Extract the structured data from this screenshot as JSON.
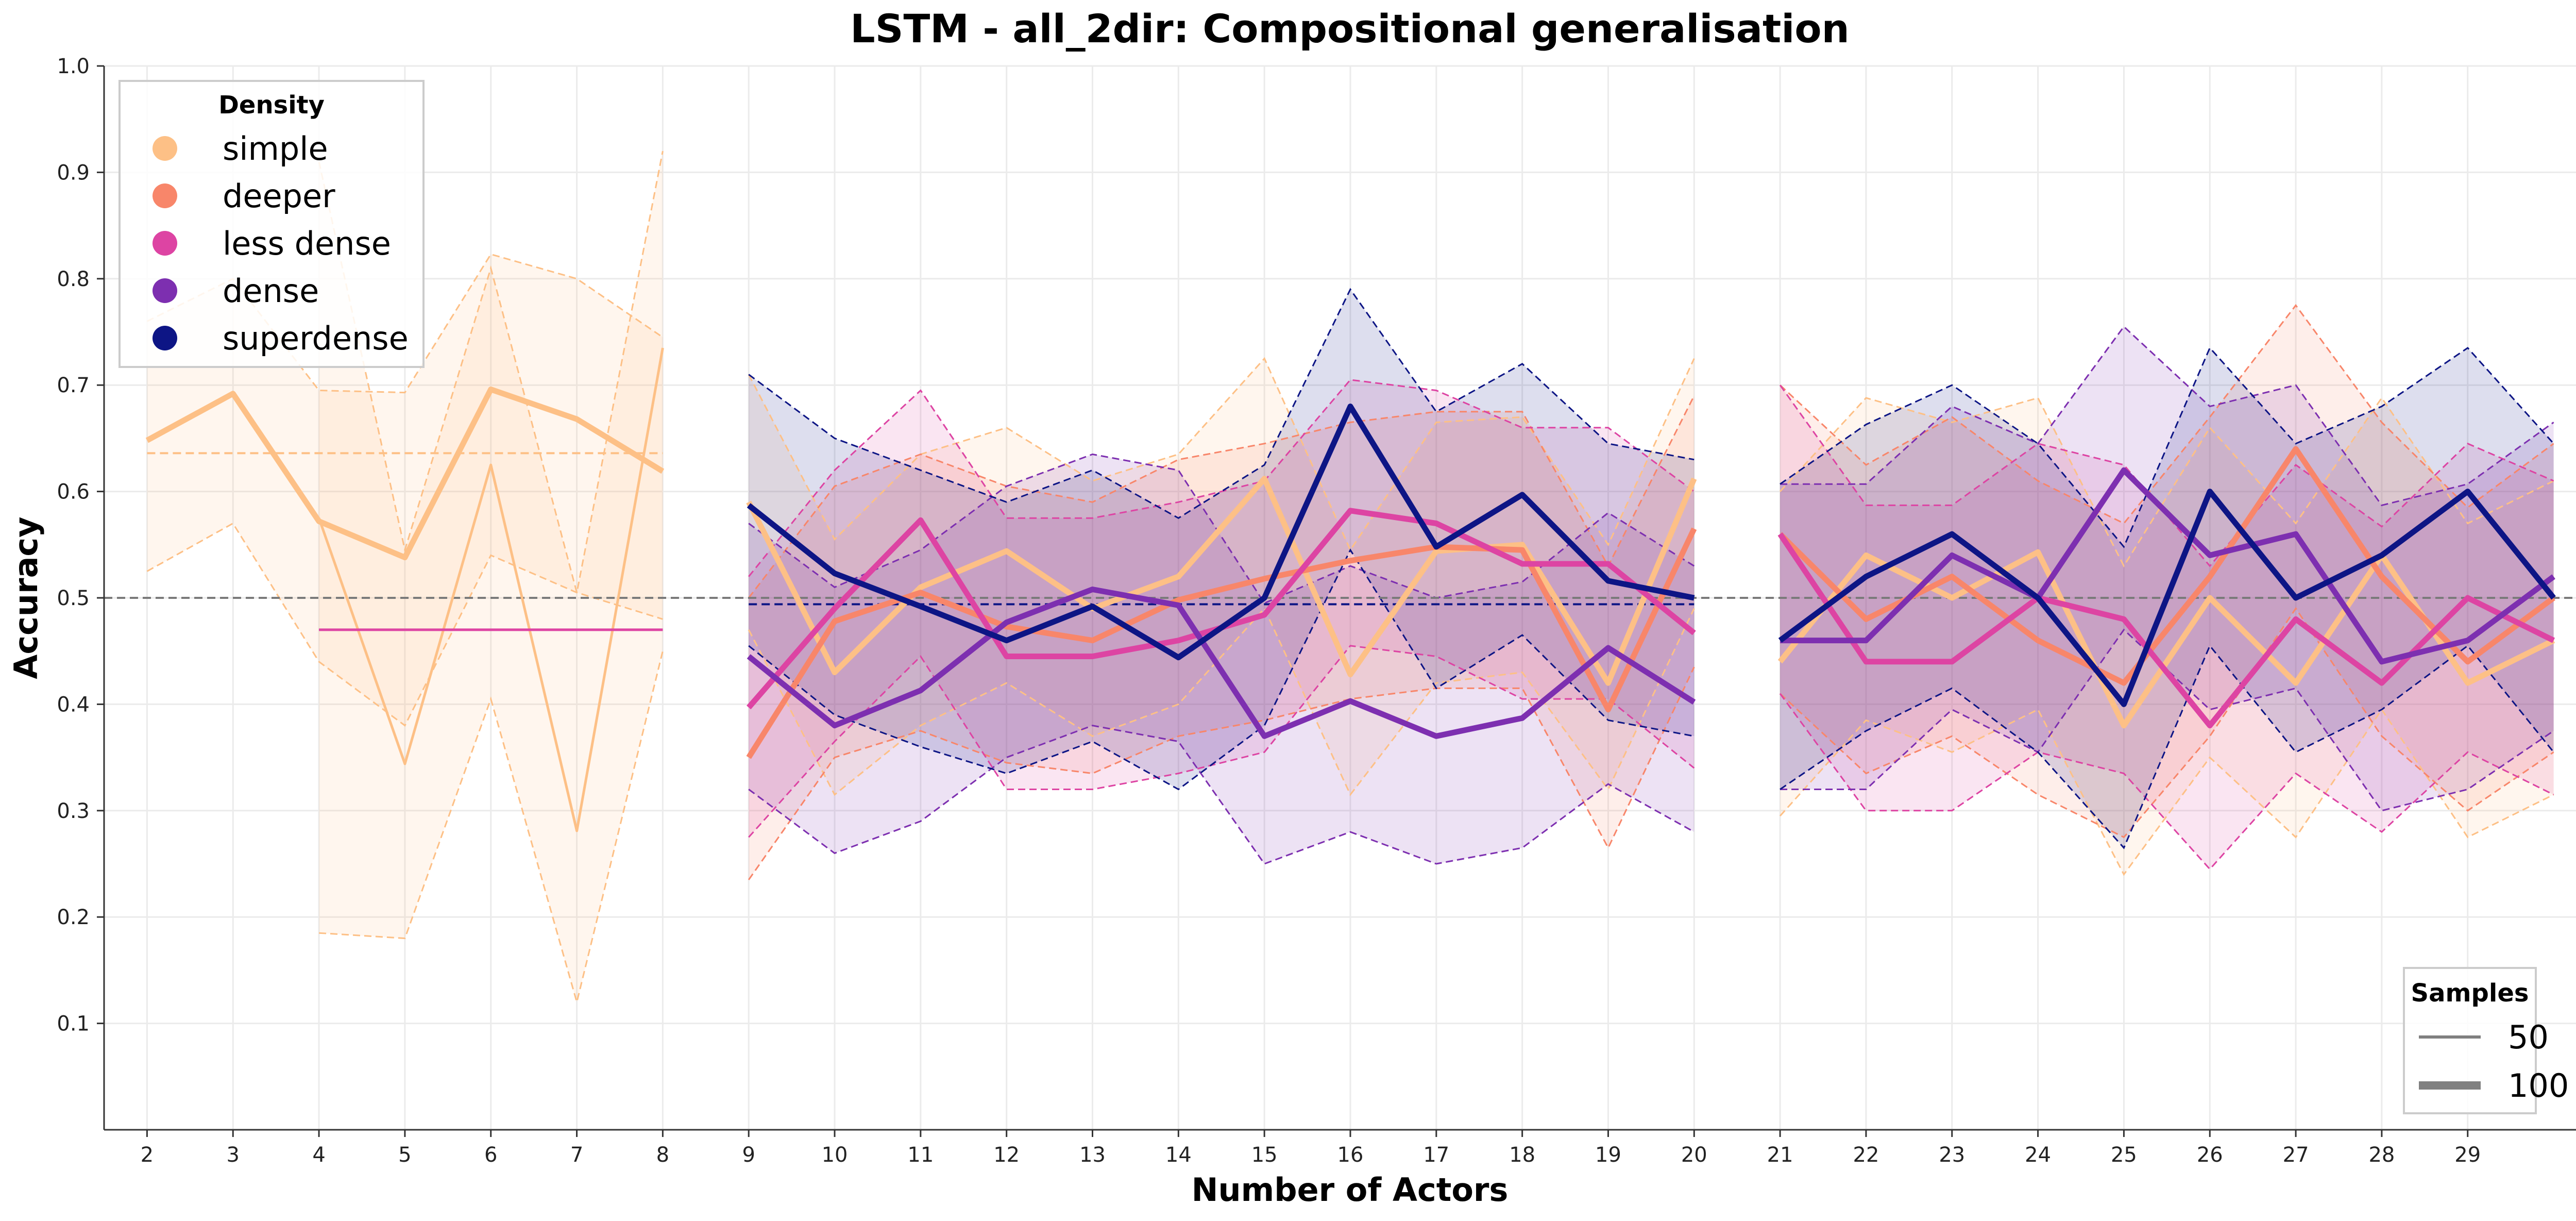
{
  "chart_data": {
    "type": "line",
    "title": "LSTM - all_2dir: Compositional generalisation",
    "xlabel": "Number of Actors",
    "ylabel": "Accuracy",
    "xlim": [
      1.5,
      30.5
    ],
    "ylim": [
      0.0,
      1.0
    ],
    "x_ticks": [
      2,
      3,
      4,
      5,
      6,
      7,
      8,
      9,
      10,
      11,
      12,
      13,
      14,
      15,
      16,
      17,
      18,
      19,
      20,
      21,
      22,
      23,
      24,
      25,
      26,
      27,
      28,
      29
    ],
    "y_ticks": [
      0.1,
      0.2,
      0.3,
      0.4,
      0.5,
      0.6,
      0.7,
      0.8,
      0.9,
      1.0
    ],
    "y_tick_labels": [
      "0.1",
      "0.2",
      "0.3",
      "0.4",
      "0.5",
      "0.6",
      "0.7",
      "0.8",
      "0.9",
      "1.0"
    ],
    "grid": true,
    "reference_line": 0.5,
    "density_legend": {
      "title": "Density",
      "placement": "top-left",
      "items": [
        {
          "label": "simple",
          "color": "#fdc086"
        },
        {
          "label": "deeper",
          "color": "#f8866a"
        },
        {
          "label": "less dense",
          "color": "#dd44a3"
        },
        {
          "label": "dense",
          "color": "#7d2fb0"
        },
        {
          "label": "superdense",
          "color": "#0d1585"
        }
      ]
    },
    "samples_legend": {
      "title": "Samples",
      "placement": "bottom-right",
      "items": [
        {
          "label": "50",
          "width": "thin"
        },
        {
          "label": "100",
          "width": "thick"
        }
      ]
    },
    "series": [
      {
        "name": "simple",
        "samples": "100",
        "color": "#fdc086",
        "groups": [
          {
            "x": [
              2,
              3,
              4,
              5,
              6,
              7,
              8
            ],
            "mean": [
              0.648,
              0.692,
              0.572,
              0.538,
              0.696,
              0.668,
              0.619
            ],
            "lower": [
              0.525,
              0.57,
              0.44,
              0.38,
              0.54,
              0.505,
              0.48
            ],
            "upper": [
              0.76,
              0.8,
              0.695,
              0.693,
              0.823,
              0.8,
              0.745
            ]
          },
          {
            "x": [
              9,
              10,
              11,
              12,
              13,
              14,
              15,
              16,
              17,
              18,
              19,
              20
            ],
            "mean": [
              0.59,
              0.43,
              0.51,
              0.544,
              0.49,
              0.52,
              0.612,
              0.428,
              0.544,
              0.55,
              0.42,
              0.612
            ],
            "lower": [
              0.47,
              0.315,
              0.38,
              0.42,
              0.37,
              0.4,
              0.49,
              0.315,
              0.42,
              0.43,
              0.32,
              0.49
            ],
            "upper": [
              0.71,
              0.555,
              0.635,
              0.66,
              0.61,
              0.635,
              0.725,
              0.545,
              0.665,
              0.67,
              0.55,
              0.725
            ]
          },
          {
            "x": [
              21,
              22,
              23,
              24,
              25,
              26,
              27,
              28,
              29,
              30
            ],
            "mean": [
              0.44,
              0.54,
              0.5,
              0.543,
              0.38,
              0.5,
              0.42,
              0.54,
              0.42,
              0.46
            ],
            "lower": [
              0.295,
              0.385,
              0.355,
              0.395,
              0.24,
              0.35,
              0.275,
              0.395,
              0.275,
              0.315
            ],
            "upper": [
              0.6,
              0.688,
              0.665,
              0.688,
              0.53,
              0.66,
              0.57,
              0.688,
              0.57,
              0.61
            ]
          }
        ]
      },
      {
        "name": "simple",
        "samples": "50",
        "color": "#fdc086",
        "groups": [
          {
            "x": [
              4,
              5,
              6,
              7,
              8
            ],
            "mean": [
              0.575,
              0.344,
              0.625,
              0.281,
              0.735
            ],
            "lower": [
              0.185,
              0.18,
              0.405,
              0.12,
              0.45
            ],
            "upper": [
              0.91,
              0.545,
              0.81,
              0.505,
              0.92
            ]
          }
        ]
      },
      {
        "name": "deeper",
        "samples": "100",
        "color": "#f8866a",
        "groups": [
          {
            "x": [
              9,
              10,
              11,
              12,
              13,
              14,
              15,
              16,
              17,
              18,
              19,
              20
            ],
            "mean": [
              0.35,
              0.478,
              0.505,
              0.473,
              0.46,
              0.498,
              0.518,
              0.535,
              0.548,
              0.545,
              0.395,
              0.565
            ],
            "lower": [
              0.235,
              0.35,
              0.375,
              0.345,
              0.335,
              0.37,
              0.385,
              0.405,
              0.415,
              0.415,
              0.265,
              0.435
            ],
            "upper": [
              0.5,
              0.605,
              0.635,
              0.605,
              0.59,
              0.63,
              0.645,
              0.665,
              0.675,
              0.675,
              0.53,
              0.69
            ]
          },
          {
            "x": [
              21,
              22,
              23,
              24,
              25,
              26,
              27,
              28,
              29,
              30
            ],
            "mean": [
              0.56,
              0.48,
              0.52,
              0.46,
              0.42,
              0.52,
              0.64,
              0.52,
              0.44,
              0.5
            ],
            "lower": [
              0.41,
              0.335,
              0.37,
              0.315,
              0.275,
              0.37,
              0.49,
              0.37,
              0.3,
              0.355
            ],
            "upper": [
              0.7,
              0.625,
              0.67,
              0.61,
              0.57,
              0.67,
              0.775,
              0.665,
              0.585,
              0.645
            ]
          }
        ]
      },
      {
        "name": "less dense",
        "samples": "50",
        "color": "#dd44a3",
        "groups": [
          {
            "x": [
              4,
              5,
              6,
              7,
              8
            ],
            "mean": [
              0.47,
              0.47,
              0.47,
              0.47,
              0.47
            ],
            "lower": [
              0.47,
              0.47,
              0.47,
              0.47,
              0.47
            ],
            "upper": [
              0.47,
              0.47,
              0.47,
              0.47,
              0.47
            ]
          }
        ]
      },
      {
        "name": "less dense",
        "samples": "100",
        "color": "#dd44a3",
        "groups": [
          {
            "x": [
              9,
              10,
              11,
              12,
              13,
              14,
              15,
              16,
              17,
              18,
              19,
              20
            ],
            "mean": [
              0.397,
              0.49,
              0.573,
              0.445,
              0.445,
              0.46,
              0.484,
              0.582,
              0.57,
              0.532,
              0.532,
              0.467
            ],
            "lower": [
              0.275,
              0.365,
              0.445,
              0.32,
              0.32,
              0.335,
              0.355,
              0.455,
              0.445,
              0.405,
              0.405,
              0.34
            ],
            "upper": [
              0.52,
              0.62,
              0.695,
              0.575,
              0.575,
              0.59,
              0.61,
              0.705,
              0.695,
              0.66,
              0.66,
              0.6
            ]
          },
          {
            "x": [
              21,
              22,
              23,
              24,
              25,
              26,
              27,
              28,
              29,
              30
            ],
            "mean": [
              0.56,
              0.44,
              0.44,
              0.5,
              0.48,
              0.38,
              0.48,
              0.42,
              0.5,
              0.46
            ],
            "lower": [
              0.41,
              0.3,
              0.3,
              0.355,
              0.335,
              0.245,
              0.335,
              0.28,
              0.355,
              0.315
            ],
            "upper": [
              0.7,
              0.587,
              0.587,
              0.645,
              0.625,
              0.53,
              0.625,
              0.567,
              0.645,
              0.61
            ]
          }
        ]
      },
      {
        "name": "dense",
        "samples": "100",
        "color": "#7d2fb0",
        "groups": [
          {
            "x": [
              9,
              10,
              11,
              12,
              13,
              14,
              15,
              16,
              17,
              18,
              19,
              20
            ],
            "mean": [
              0.445,
              0.38,
              0.413,
              0.477,
              0.508,
              0.493,
              0.37,
              0.403,
              0.37,
              0.387,
              0.453,
              0.402
            ],
            "lower": [
              0.32,
              0.26,
              0.29,
              0.35,
              0.38,
              0.365,
              0.25,
              0.28,
              0.25,
              0.265,
              0.325,
              0.28
            ],
            "upper": [
              0.57,
              0.51,
              0.545,
              0.605,
              0.635,
              0.62,
              0.495,
              0.53,
              0.5,
              0.515,
              0.58,
              0.53
            ]
          },
          {
            "x": [
              21,
              22,
              23,
              24,
              25,
              26,
              27,
              28,
              29,
              30
            ],
            "mean": [
              0.46,
              0.46,
              0.54,
              0.5,
              0.62,
              0.54,
              0.56,
              0.44,
              0.46,
              0.52
            ],
            "lower": [
              0.32,
              0.32,
              0.395,
              0.355,
              0.47,
              0.395,
              0.415,
              0.3,
              0.32,
              0.375
            ],
            "upper": [
              0.607,
              0.607,
              0.68,
              0.645,
              0.755,
              0.68,
              0.7,
              0.587,
              0.607,
              0.665
            ]
          }
        ]
      },
      {
        "name": "superdense",
        "samples": "100",
        "color": "#0d1585",
        "groups": [
          {
            "x": [
              9,
              10,
              11,
              12,
              13,
              14,
              15,
              16,
              17,
              18,
              19,
              20
            ],
            "mean": [
              0.587,
              0.523,
              0.492,
              0.46,
              0.492,
              0.444,
              0.5,
              0.68,
              0.548,
              0.597,
              0.516,
              0.5
            ],
            "lower": [
              0.455,
              0.39,
              0.36,
              0.335,
              0.365,
              0.32,
              0.38,
              0.545,
              0.415,
              0.465,
              0.385,
              0.37
            ],
            "upper": [
              0.71,
              0.65,
              0.62,
              0.59,
              0.62,
              0.575,
              0.625,
              0.79,
              0.675,
              0.72,
              0.645,
              0.63
            ]
          },
          {
            "x": [
              21,
              22,
              23,
              24,
              25,
              26,
              27,
              28,
              29,
              30
            ],
            "mean": [
              0.46,
              0.52,
              0.56,
              0.5,
              0.4,
              0.6,
              0.5,
              0.54,
              0.6,
              0.5
            ],
            "lower": [
              0.32,
              0.375,
              0.415,
              0.355,
              0.265,
              0.455,
              0.355,
              0.395,
              0.455,
              0.355
            ],
            "upper": [
              0.607,
              0.663,
              0.7,
              0.645,
              0.548,
              0.735,
              0.645,
              0.68,
              0.735,
              0.645
            ]
          }
        ]
      }
    ],
    "group_mean_lines": [
      {
        "color": "#fdc086",
        "x_range": [
          2,
          8
        ],
        "y": 0.636
      },
      {
        "color": "#0d1585",
        "x_range": [
          9,
          20
        ],
        "y": 0.494
      }
    ]
  }
}
